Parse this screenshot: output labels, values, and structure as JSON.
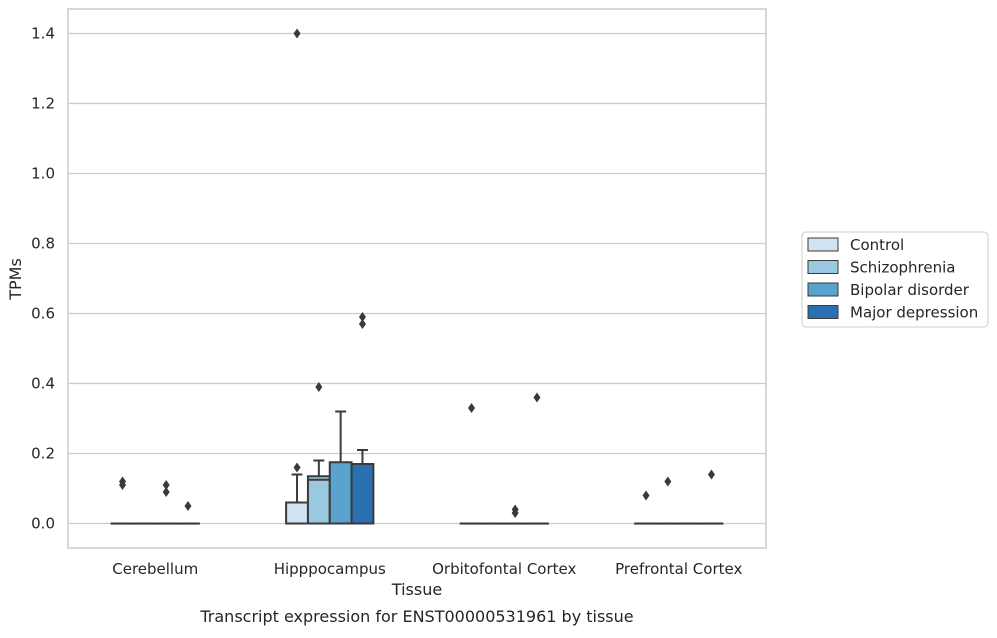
{
  "chart_data": {
    "type": "box",
    "caption": "Transcript expression for ENST00000531961 by tissue",
    "xlabel": "Tissue",
    "ylabel": "TPMs",
    "ylim": [
      -0.07,
      1.47
    ],
    "yticks": [
      0.0,
      0.2,
      0.4,
      0.6,
      0.8,
      1.0,
      1.2,
      1.4
    ],
    "ytick_labels": [
      "0.0",
      "0.2",
      "0.4",
      "0.6",
      "0.8",
      "1.0",
      "1.2",
      "1.4"
    ],
    "grid": true,
    "legend_position": "right",
    "categories": [
      "Cerebellum",
      "Hipppocampus",
      "Orbitofontal Cortex",
      "Prefrontal Cortex"
    ],
    "series": [
      {
        "name": "Control",
        "color": "#d1e2f2",
        "boxes": [
          {
            "q1": 0.0,
            "median": 0.0,
            "q3": 0.0,
            "whisker_low": 0.0,
            "whisker_high": 0.0,
            "outliers": [
              0.11,
              0.12
            ]
          },
          {
            "q1": 0.0,
            "median": 0.0,
            "q3": 0.06,
            "whisker_low": 0.0,
            "whisker_high": 0.14,
            "outliers": [
              0.16,
              1.4
            ]
          },
          {
            "q1": 0.0,
            "median": 0.0,
            "q3": 0.0,
            "whisker_low": 0.0,
            "whisker_high": 0.0,
            "outliers": [
              0.33
            ]
          },
          {
            "q1": 0.0,
            "median": 0.0,
            "q3": 0.0,
            "whisker_low": 0.0,
            "whisker_high": 0.0,
            "outliers": [
              0.08
            ]
          }
        ]
      },
      {
        "name": "Schizophrenia",
        "color": "#9ac8e0",
        "boxes": [
          {
            "q1": 0.0,
            "median": 0.0,
            "q3": 0.0,
            "whisker_low": 0.0,
            "whisker_high": 0.0,
            "outliers": []
          },
          {
            "q1": 0.0,
            "median": 0.125,
            "q3": 0.135,
            "whisker_low": 0.0,
            "whisker_high": 0.18,
            "outliers": [
              0.39
            ]
          },
          {
            "q1": 0.0,
            "median": 0.0,
            "q3": 0.0,
            "whisker_low": 0.0,
            "whisker_high": 0.0,
            "outliers": []
          },
          {
            "q1": 0.0,
            "median": 0.0,
            "q3": 0.0,
            "whisker_low": 0.0,
            "whisker_high": 0.0,
            "outliers": [
              0.12
            ]
          }
        ]
      },
      {
        "name": "Bipolar disorder",
        "color": "#5ba3cf",
        "boxes": [
          {
            "q1": 0.0,
            "median": 0.0,
            "q3": 0.0,
            "whisker_low": 0.0,
            "whisker_high": 0.0,
            "outliers": [
              0.09,
              0.11
            ]
          },
          {
            "q1": 0.0,
            "median": 0.0,
            "q3": 0.175,
            "whisker_low": 0.0,
            "whisker_high": 0.32,
            "outliers": []
          },
          {
            "q1": 0.0,
            "median": 0.0,
            "q3": 0.0,
            "whisker_low": 0.0,
            "whisker_high": 0.0,
            "outliers": [
              0.03,
              0.04
            ]
          },
          {
            "q1": 0.0,
            "median": 0.0,
            "q3": 0.0,
            "whisker_low": 0.0,
            "whisker_high": 0.0,
            "outliers": []
          }
        ]
      },
      {
        "name": "Major depression",
        "color": "#2a6fb0",
        "boxes": [
          {
            "q1": 0.0,
            "median": 0.0,
            "q3": 0.0,
            "whisker_low": 0.0,
            "whisker_high": 0.0,
            "outliers": [
              0.05
            ]
          },
          {
            "q1": 0.0,
            "median": 0.0,
            "q3": 0.17,
            "whisker_low": 0.0,
            "whisker_high": 0.21,
            "outliers": [
              0.57,
              0.59
            ]
          },
          {
            "q1": 0.0,
            "median": 0.0,
            "q3": 0.0,
            "whisker_low": 0.0,
            "whisker_high": 0.0,
            "outliers": [
              0.36
            ]
          },
          {
            "q1": 0.0,
            "median": 0.0,
            "q3": 0.0,
            "whisker_low": 0.0,
            "whisker_high": 0.0,
            "outliers": [
              0.14
            ]
          }
        ]
      }
    ]
  }
}
